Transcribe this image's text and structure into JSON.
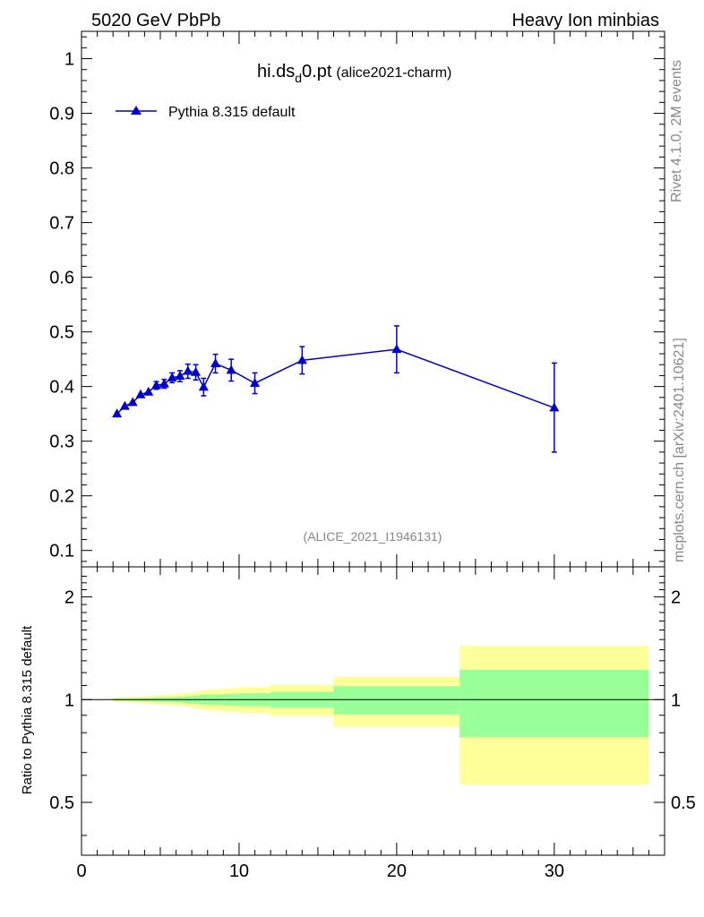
{
  "header": {
    "left": "5020 GeV PbPb",
    "right": "Heavy Ion minbias"
  },
  "side_labels": {
    "rivet": "Rivet 4.1.0,  2M events",
    "source": "mcplots.cern.ch [arXiv:2401.10621]"
  },
  "chart_data": [
    {
      "type": "line",
      "title_main": "hi.ds",
      "title_sub": "d",
      "title_rest": "0.pt",
      "title_tag": "(alice2021-charm)",
      "watermark": "(ALICE_2021_I1946131)",
      "xlim": [
        0,
        37
      ],
      "ylim": [
        0.07,
        1.05
      ],
      "yticks": [
        0.1,
        0.2,
        0.3,
        0.4,
        0.5,
        0.6,
        0.7,
        0.8,
        0.9,
        1
      ],
      "ytick_labels": [
        "0.1",
        "0.2",
        "0.3",
        "0.4",
        "0.5",
        "0.6",
        "0.7",
        "0.8",
        "0.9",
        "1"
      ],
      "legend": {
        "label": "Pythia 8.315 default",
        "position": "top-left",
        "color": "#0000cc"
      },
      "series": [
        {
          "name": "Pythia 8.315 default",
          "color": "#0000cc",
          "marker": "triangle",
          "x": [
            2.25,
            2.75,
            3.25,
            3.75,
            4.25,
            4.75,
            5.25,
            5.75,
            6.25,
            6.75,
            7.25,
            7.75,
            8.5,
            9.5,
            11,
            14,
            20,
            30
          ],
          "y": [
            0.35,
            0.364,
            0.371,
            0.385,
            0.39,
            0.402,
            0.405,
            0.416,
            0.419,
            0.428,
            0.426,
            0.399,
            0.442,
            0.43,
            0.406,
            0.448,
            0.468,
            0.361
          ],
          "err_lo": [
            0.003,
            0.004,
            0.004,
            0.005,
            0.006,
            0.007,
            0.008,
            0.009,
            0.01,
            0.013,
            0.014,
            0.016,
            0.017,
            0.02,
            0.019,
            0.025,
            0.043,
            0.081
          ],
          "err_hi": [
            0.003,
            0.004,
            0.004,
            0.005,
            0.006,
            0.007,
            0.008,
            0.009,
            0.01,
            0.013,
            0.014,
            0.016,
            0.017,
            0.02,
            0.019,
            0.025,
            0.043,
            0.082
          ]
        }
      ]
    },
    {
      "type": "area",
      "ylabel": "Ratio to Pythia 8.315 default",
      "xlim": [
        0,
        37
      ],
      "ylim": [
        0.35,
        2.45
      ],
      "yscale": "log",
      "yticks": [
        0.5,
        1,
        2
      ],
      "ytick_labels": [
        "0.5",
        "1",
        "2"
      ],
      "xticks": [
        0,
        10,
        20,
        30
      ],
      "xtick_labels": [
        "0",
        "10",
        "20",
        "30"
      ],
      "reference_line": 1,
      "band_colors": {
        "inner": "#99ff99",
        "outer": "#ffff99",
        "line": "#000000"
      },
      "bins": [
        {
          "lo": 2,
          "hi": 2.5,
          "inner": [
            0.993,
            1.007
          ],
          "outer": [
            0.986,
            1.014
          ]
        },
        {
          "lo": 2.5,
          "hi": 3,
          "inner": [
            0.992,
            1.008
          ],
          "outer": [
            0.984,
            1.016
          ]
        },
        {
          "lo": 3,
          "hi": 3.5,
          "inner": [
            0.991,
            1.009
          ],
          "outer": [
            0.982,
            1.018
          ]
        },
        {
          "lo": 3.5,
          "hi": 4,
          "inner": [
            0.99,
            1.01
          ],
          "outer": [
            0.979,
            1.021
          ]
        },
        {
          "lo": 4,
          "hi": 4.5,
          "inner": [
            0.988,
            1.012
          ],
          "outer": [
            0.975,
            1.025
          ]
        },
        {
          "lo": 4.5,
          "hi": 5,
          "inner": [
            0.986,
            1.014
          ],
          "outer": [
            0.971,
            1.029
          ]
        },
        {
          "lo": 5,
          "hi": 5.5,
          "inner": [
            0.984,
            1.016
          ],
          "outer": [
            0.967,
            1.033
          ]
        },
        {
          "lo": 5.5,
          "hi": 6,
          "inner": [
            0.982,
            1.018
          ],
          "outer": [
            0.963,
            1.037
          ]
        },
        {
          "lo": 6,
          "hi": 6.5,
          "inner": [
            0.98,
            1.02
          ],
          "outer": [
            0.959,
            1.041
          ]
        },
        {
          "lo": 6.5,
          "hi": 7,
          "inner": [
            0.976,
            1.024
          ],
          "outer": [
            0.952,
            1.048
          ]
        },
        {
          "lo": 7,
          "hi": 7.5,
          "inner": [
            0.972,
            1.028
          ],
          "outer": [
            0.945,
            1.055
          ]
        },
        {
          "lo": 7.5,
          "hi": 8,
          "inner": [
            0.967,
            1.033
          ],
          "outer": [
            0.935,
            1.065
          ]
        },
        {
          "lo": 8,
          "hi": 9,
          "inner": [
            0.965,
            1.035
          ],
          "outer": [
            0.928,
            1.072
          ]
        },
        {
          "lo": 9,
          "hi": 10,
          "inner": [
            0.96,
            1.04
          ],
          "outer": [
            0.92,
            1.08
          ]
        },
        {
          "lo": 10,
          "hi": 12,
          "inner": [
            0.956,
            1.044
          ],
          "outer": [
            0.912,
            1.088
          ]
        },
        {
          "lo": 12,
          "hi": 16,
          "inner": [
            0.946,
            1.054
          ],
          "outer": [
            0.895,
            1.105
          ]
        },
        {
          "lo": 16,
          "hi": 24,
          "inner": [
            0.905,
            1.095
          ],
          "outer": [
            0.832,
            1.168
          ]
        },
        {
          "lo": 24,
          "hi": 36,
          "inner": [
            0.776,
            1.224
          ],
          "outer": [
            0.563,
            1.437
          ]
        }
      ]
    }
  ]
}
